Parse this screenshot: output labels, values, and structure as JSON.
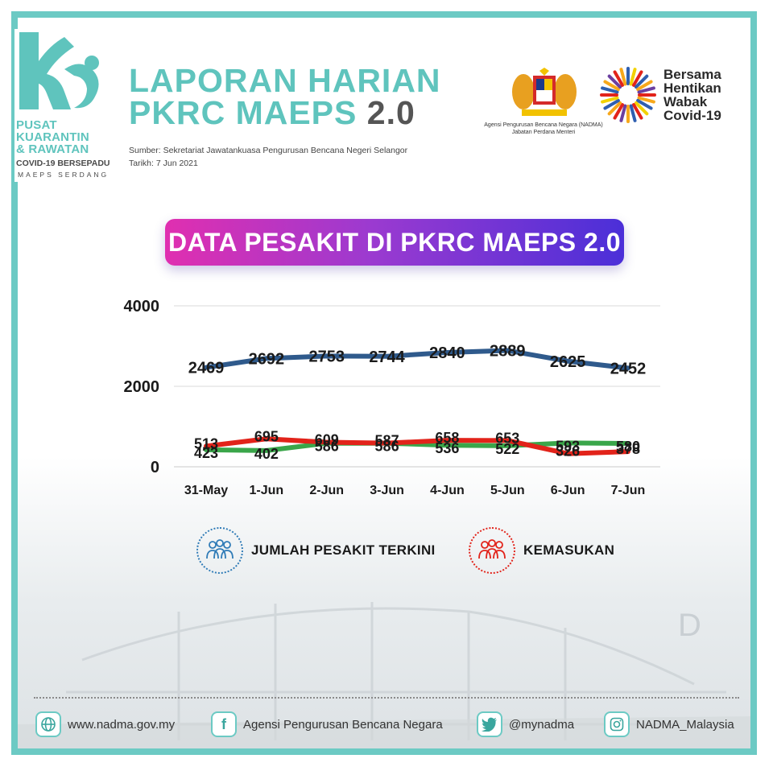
{
  "brand": {
    "line1": "PUSAT",
    "line2": "KUARANTIN",
    "line3": "& RAWATAN",
    "sub1": "COVID-19 BERSEPADU",
    "sub2": "MAEPS SERDANG"
  },
  "header": {
    "title_line1": "LAPORAN HARIAN",
    "title_line2": "PKRC MAEPS",
    "title_version": "2.0",
    "source": "Sumber: Sekretariat Jawatankuasa Pengurusan Bencana Negeri Selangor",
    "date": "Tarikh: 7 Jun 2021",
    "agency_line1": "Agensi Pengurusan Bencana Negara (NADMA)",
    "agency_line2": "Jabatan Perdana Menteri",
    "campaign_line1": "Bersama",
    "campaign_line2": "Hentikan",
    "campaign_line3": "Wabak",
    "campaign_line4": "Covid-19"
  },
  "banner": {
    "title": "DATA PESAKIT DI PKRC MAEPS 2.0"
  },
  "chart_data": {
    "type": "line",
    "categories": [
      "31-May",
      "1-Jun",
      "2-Jun",
      "3-Jun",
      "4-Jun",
      "5-Jun",
      "6-Jun",
      "7-Jun"
    ],
    "series": [
      {
        "name": "JUMLAH PESAKIT TERKINI",
        "color": "#2f5a8c",
        "values": [
          2469,
          2692,
          2753,
          2744,
          2840,
          2889,
          2625,
          2452
        ]
      },
      {
        "name": "KEMASUKAN",
        "color": "#e2231a",
        "values": [
          513,
          695,
          609,
          587,
          658,
          653,
          326,
          378
        ]
      },
      {
        "color": "#3aa64a",
        "values": [
          423,
          402,
          586,
          586,
          536,
          522,
          593,
          580
        ]
      }
    ],
    "yticks": [
      0,
      2000,
      4000
    ],
    "ylim": [
      0,
      4000
    ],
    "grid": true,
    "legend": "bottom"
  },
  "legend": {
    "item1_label": "JUMLAH PESAKIT TERKINI",
    "item2_label": "KEMASUKAN",
    "item1_color": "#2f7bb7",
    "item2_color": "#e2231a"
  },
  "footer": {
    "website": "www.nadma.gov.my",
    "facebook": "Agensi Pengurusan Bencana Negara",
    "twitter": "@mynadma",
    "instagram": "NADMA_Malaysia"
  },
  "colors": {
    "accent": "#6ccac4",
    "banner_start": "#e02fb0",
    "banner_end": "#4b2fd8"
  }
}
